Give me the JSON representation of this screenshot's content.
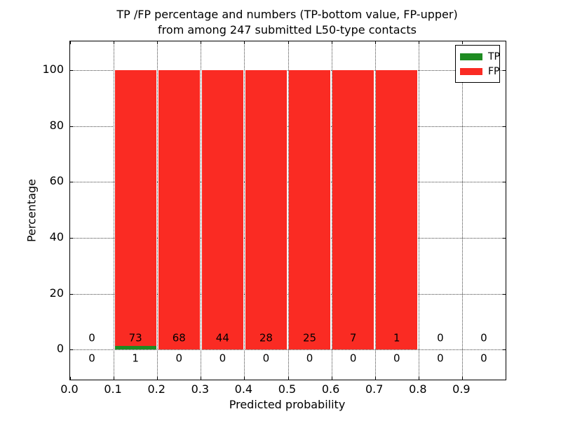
{
  "title": {
    "line1": "TP /FP percentage and numbers (TP-bottom value, FP-upper)",
    "line2": "from among 247 submitted L50-type contacts"
  },
  "chart_data": {
    "type": "bar",
    "stacked": true,
    "title": "TP /FP percentage and numbers (TP-bottom value, FP-upper) from among 247 submitted L50-type contacts",
    "xlabel": "Predicted probability",
    "ylabel": "Percentage",
    "total_contacts": 247,
    "xlim": [
      0.0,
      1.0
    ],
    "ylim": [
      -10.8,
      110.4
    ],
    "grid": true,
    "x_tick_values": [
      0.0,
      0.1,
      0.2,
      0.3,
      0.4,
      0.5,
      0.6,
      0.7,
      0.8,
      0.9
    ],
    "x_tick_labels": [
      "0.0",
      "0.1",
      "0.2",
      "0.3",
      "0.4",
      "0.5",
      "0.6",
      "0.7",
      "0.8",
      "0.9"
    ],
    "y_ticks": [
      0,
      20,
      40,
      60,
      80,
      100
    ],
    "bin_width": 0.1,
    "bin_starts": [
      0.0,
      0.1,
      0.2,
      0.3,
      0.4,
      0.5,
      0.6,
      0.7,
      0.8,
      0.9
    ],
    "series": [
      {
        "name": "TP",
        "color": "#1e8b22",
        "counts": [
          0,
          1,
          0,
          0,
          0,
          0,
          0,
          0,
          0,
          0
        ],
        "percent": [
          0,
          1.35,
          0,
          0,
          0,
          0,
          0,
          0,
          0,
          0
        ]
      },
      {
        "name": "FP",
        "color": "#fa2b23",
        "counts": [
          0,
          73,
          68,
          44,
          28,
          25,
          7,
          1,
          0,
          0
        ],
        "percent": [
          0,
          98.65,
          100,
          100,
          100,
          100,
          100,
          100,
          0,
          0
        ]
      }
    ],
    "legend": {
      "position": "upper right",
      "entries": [
        "TP",
        "FP"
      ]
    }
  }
}
